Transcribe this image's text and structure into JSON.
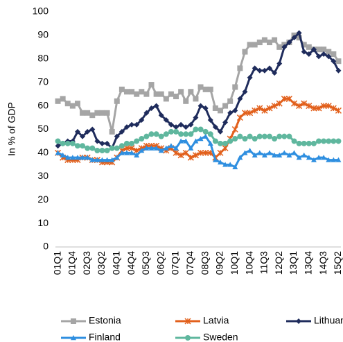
{
  "chart_data": {
    "type": "line",
    "y_label": "In % of GDP",
    "categories": [
      "01Q1",
      null,
      null,
      "01Q4",
      null,
      null,
      "02Q3",
      null,
      null,
      "03Q2",
      null,
      null,
      "04Q1",
      null,
      null,
      "04Q4",
      null,
      null,
      "05Q3",
      null,
      null,
      "06Q2",
      null,
      null,
      "07Q1",
      null,
      null,
      "07Q4",
      null,
      null,
      "08Q3",
      null,
      null,
      "09Q2",
      null,
      null,
      "10Q1",
      null,
      null,
      "10Q4",
      null,
      null,
      "11Q3",
      null,
      null,
      "12Q2",
      null,
      null,
      "13Q1",
      null,
      null,
      "13Q4",
      null,
      null,
      "14Q3",
      null,
      null,
      "15Q2"
    ],
    "ylim": [
      0,
      100
    ],
    "yticks": [
      0,
      10,
      20,
      30,
      40,
      50,
      60,
      70,
      80,
      90,
      100
    ],
    "grid": false,
    "legend": "bottom",
    "series": [
      {
        "name": "Estonia",
        "color": "#a5a5a5",
        "marker": "square",
        "values": [
          62,
          63,
          61,
          60,
          61,
          57,
          57,
          56,
          57,
          57,
          57,
          49,
          62,
          67,
          66,
          66,
          65,
          66,
          65,
          69,
          65,
          65,
          63,
          65,
          64,
          66,
          62,
          66,
          63,
          68,
          67,
          67,
          59,
          58,
          60,
          62,
          68,
          76,
          83,
          86,
          86,
          87,
          88,
          87,
          88,
          85,
          86,
          87,
          90,
          89,
          86,
          85,
          84,
          84,
          84,
          83,
          82,
          79
        ]
      },
      {
        "name": "Latvia",
        "color": "#e2601c",
        "marker": "cross",
        "values": [
          40,
          38,
          37,
          37,
          37,
          38,
          38,
          37,
          37,
          36,
          36,
          36,
          38,
          41,
          42,
          42,
          41,
          42,
          43,
          43,
          43,
          42,
          41,
          42,
          40,
          39,
          40,
          38,
          39,
          40,
          40,
          40,
          38,
          40,
          42,
          46,
          50,
          55,
          57,
          57,
          58,
          59,
          58,
          59,
          60,
          61,
          63,
          63,
          61,
          60,
          61,
          60,
          59,
          59,
          60,
          60,
          59,
          58
        ]
      },
      {
        "name": "Lithuania",
        "color": "#1f2c5c",
        "marker": "diamond",
        "values": [
          43,
          44,
          45,
          45,
          49,
          47,
          49,
          50,
          45,
          44,
          44,
          42,
          47,
          49,
          51,
          52,
          52,
          54,
          57,
          59,
          60,
          56,
          54,
          52,
          51,
          52,
          51,
          52,
          55,
          60,
          59,
          54,
          51,
          49,
          53,
          57,
          58,
          63,
          66,
          72,
          76,
          75,
          75,
          76,
          74,
          78,
          85,
          87,
          89,
          91,
          83,
          82,
          84,
          81,
          82,
          81,
          79,
          75
        ]
      },
      {
        "name": "Finland",
        "color": "#2f8fe0",
        "marker": "triangle",
        "values": [
          40,
          39,
          38,
          38,
          38,
          38,
          38,
          37,
          37,
          37,
          37,
          37,
          38,
          40,
          40,
          40,
          39,
          41,
          42,
          42,
          42,
          41,
          42,
          43,
          42,
          45,
          45,
          42,
          45,
          46,
          47,
          44,
          37,
          36,
          35,
          35,
          34,
          38,
          40,
          41,
          39,
          40,
          39,
          40,
          39,
          39,
          40,
          39,
          40,
          38,
          39,
          38,
          37,
          38,
          38,
          37,
          37,
          37
        ]
      },
      {
        "name": "Sweden",
        "color": "#5fb79e",
        "marker": "circle",
        "values": [
          45,
          44,
          44,
          44,
          43,
          43,
          42,
          42,
          41,
          41,
          41,
          42,
          42,
          43,
          44,
          44,
          45,
          46,
          47,
          48,
          48,
          47,
          48,
          49,
          49,
          48,
          48,
          48,
          50,
          50,
          49,
          48,
          45,
          44,
          44,
          45,
          46,
          47,
          46,
          47,
          46,
          47,
          47,
          47,
          46,
          47,
          47,
          47,
          45,
          44,
          44,
          44,
          44,
          45,
          45,
          45,
          45,
          45
        ]
      }
    ]
  }
}
